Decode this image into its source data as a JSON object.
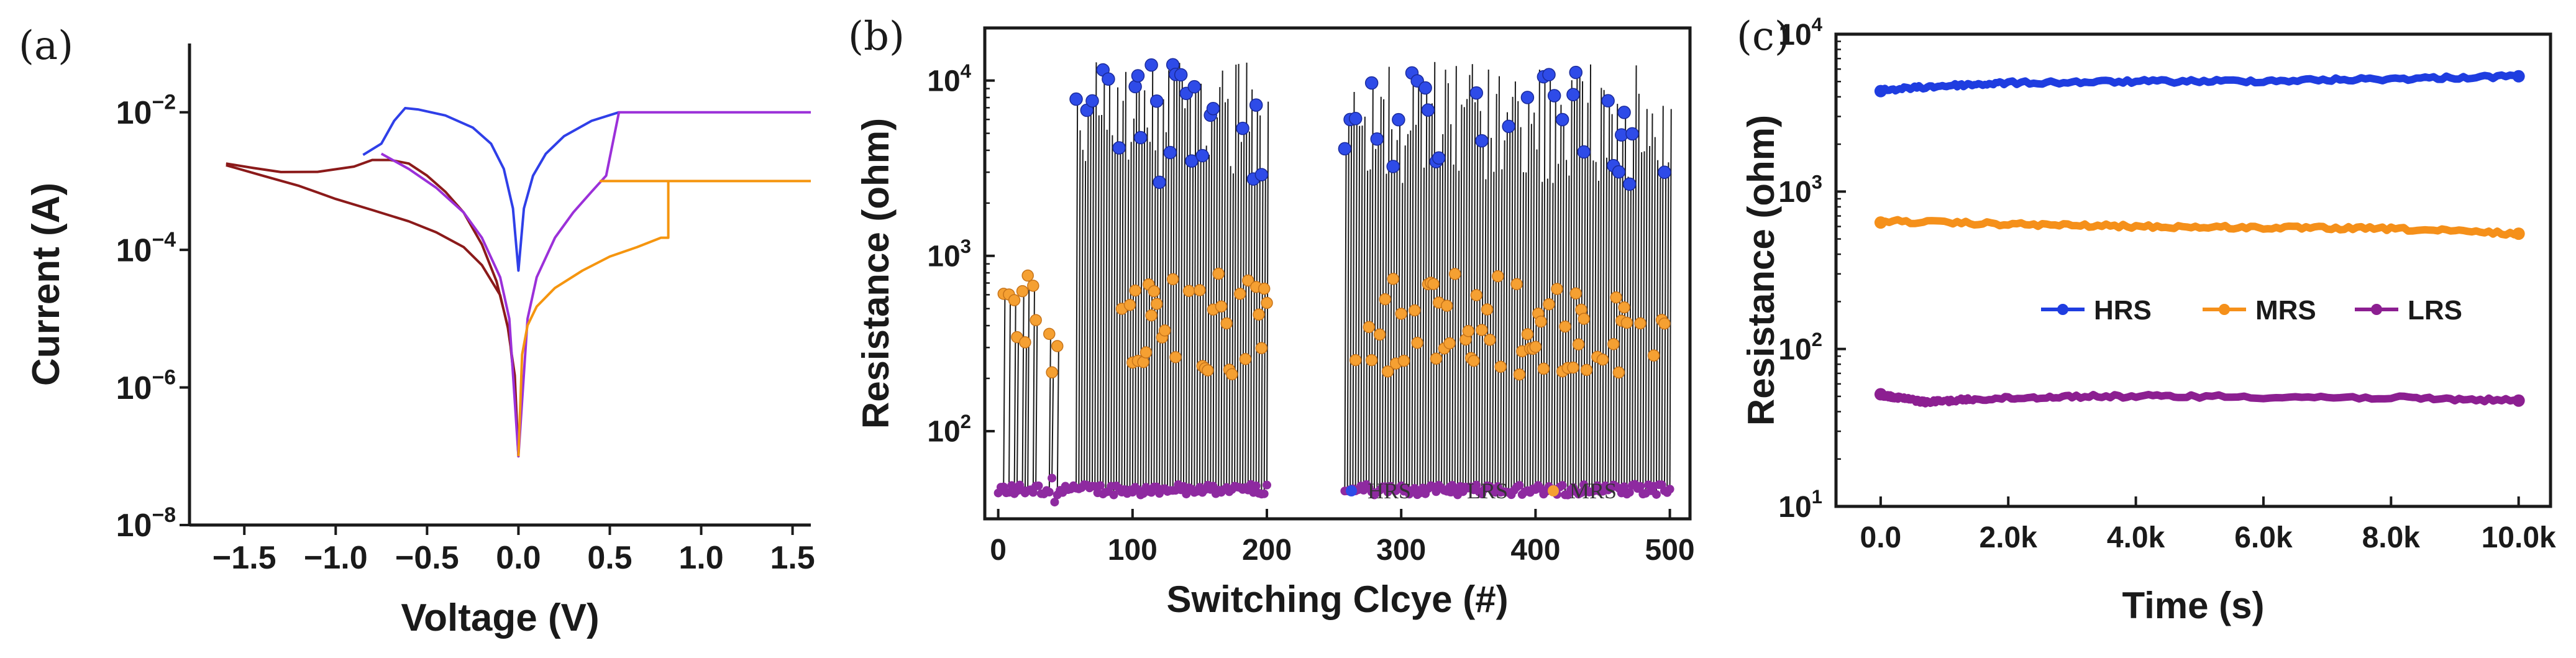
{
  "chart_data": [
    {
      "panel": "(a)",
      "type": "line",
      "xlabel": "Voltage (V)",
      "ylabel": "Current (A)",
      "xlim": [
        -1.8,
        1.6
      ],
      "ylim_log10": [
        -8,
        -1
      ],
      "y_scale": "log",
      "x_ticks": [
        "-1.5",
        "-1.0",
        "-0.5",
        "0.0",
        "0.5",
        "1.0",
        "1.5"
      ],
      "x_tick_values": [
        -1.5,
        -1.0,
        -0.5,
        0.0,
        0.5,
        1.0,
        1.5
      ],
      "y_tick_exponents": [
        -8,
        -6,
        -4,
        -2
      ],
      "y_tick_base": "10",
      "series": [
        {
          "name": "dark-red sweep",
          "color": "#8b1a1a",
          "x": [
            -1.6,
            -1.45,
            -1.3,
            -1.1,
            -0.9,
            -0.8,
            -0.7,
            -0.6,
            -0.5,
            -0.4,
            -0.3,
            -0.2,
            -0.12,
            -0.06,
            -0.02,
            0.0,
            -0.02,
            -0.05,
            -0.1,
            -0.2,
            -0.3,
            -0.45,
            -0.6,
            -0.8,
            -1.0,
            -1.2,
            -1.4,
            -1.6
          ],
          "y": [
            0.0018,
            0.0016,
            0.0013,
            0.0014,
            0.0018,
            0.0021,
            0.0021,
            0.0018,
            0.0012,
            0.0007,
            0.00035,
            0.00012,
            3.5e-05,
            8e-06,
            1.5e-06,
            1e-07,
            1e-06,
            6e-06,
            2.2e-05,
            6e-05,
            0.00011,
            0.00018,
            0.00026,
            0.00038,
            0.00055,
            0.00085,
            0.0012,
            0.0017
          ]
        },
        {
          "name": "blue sweep",
          "color": "#2f3fe8",
          "x": [
            -0.85,
            -0.75,
            -0.68,
            -0.62,
            -0.55,
            -0.4,
            -0.25,
            -0.15,
            -0.08,
            -0.03,
            0.0,
            0.03,
            0.08,
            0.15,
            0.25,
            0.4,
            0.55
          ],
          "y": [
            0.0024,
            0.0035,
            0.0075,
            0.0115,
            0.011,
            0.009,
            0.006,
            0.0035,
            0.0015,
            0.0004,
            5e-05,
            0.0004,
            0.0012,
            0.0025,
            0.0045,
            0.0075,
            0.01
          ]
        },
        {
          "name": "purple sweep",
          "color": "#9b30d9",
          "x": [
            -0.75,
            -0.6,
            -0.45,
            -0.3,
            -0.2,
            -0.1,
            -0.05,
            0.0,
            0.05,
            0.1,
            0.2,
            0.3,
            0.4,
            0.48,
            0.55,
            0.8,
            1.2,
            1.6
          ],
          "y": [
            0.0025,
            0.0015,
            0.0008,
            0.00035,
            0.00015,
            4e-05,
            1e-05,
            1e-07,
            1e-05,
            4e-05,
            0.00015,
            0.00035,
            0.0007,
            0.0012,
            0.01,
            0.01,
            0.01,
            0.01
          ]
        },
        {
          "name": "orange sweep",
          "color": "#f5950f",
          "x": [
            0.0,
            0.02,
            0.05,
            0.1,
            0.2,
            0.35,
            0.5,
            0.65,
            0.78,
            0.82,
            0.82,
            0.6,
            0.45,
            1.0,
            1.6
          ],
          "y": [
            1e-07,
            3e-06,
            8e-06,
            1.5e-05,
            2.8e-05,
            5e-05,
            8e-05,
            0.00011,
            0.00015,
            0.00015,
            0.001,
            0.001,
            0.001,
            0.001,
            0.001
          ]
        }
      ]
    },
    {
      "panel": "(b)",
      "type": "scatter",
      "xlabel": "Switching Clcye (#)",
      "ylabel": "Resistance (ohm)",
      "xlim": [
        -10,
        515
      ],
      "ylim_log10": [
        1.5,
        4.3
      ],
      "y_scale": "log",
      "x_ticks": [
        "0",
        "100",
        "200",
        "300",
        "400",
        "500"
      ],
      "x_tick_values": [
        0,
        100,
        200,
        300,
        400,
        500
      ],
      "y_tick_exponents": [
        2,
        3,
        4
      ],
      "y_tick_base": "10",
      "legend": [
        "HRS",
        "LRS",
        "MRS"
      ],
      "legend_colors": {
        "HRS": "#2e4be8",
        "LRS": "#8e2aa0",
        "MRS": "#f5a032"
      },
      "series_ranges": [
        {
          "name": "HRS",
          "x_range": [
            57,
            500
          ],
          "gap": [
            200,
            258
          ],
          "typical": 5000,
          "low": 2500,
          "high": 16000
        },
        {
          "name": "MRS",
          "x_range": [
            0,
            500
          ],
          "gaps": [
            [
              45,
              90
            ],
            [
              200,
              258
            ]
          ],
          "typical": 350,
          "low": 150,
          "high": 800
        },
        {
          "name": "LRS",
          "x_range": [
            0,
            500
          ],
          "gap": [
            200,
            258
          ],
          "typical": 47,
          "low": 37,
          "high": 55
        }
      ],
      "line_color": "#1a1a1a"
    },
    {
      "panel": "(c)",
      "type": "line",
      "xlabel": "Time (s)",
      "ylabel": "Resistance (ohm)",
      "xlim": [
        -700,
        10500
      ],
      "ylim_log10": [
        1,
        4
      ],
      "y_scale": "log",
      "x_ticks": [
        "0.0",
        "2.0k",
        "4.0k",
        "6.0k",
        "8.0k",
        "10.0k"
      ],
      "x_tick_values": [
        0,
        2000,
        4000,
        6000,
        8000,
        10000
      ],
      "y_tick_exponents": [
        1,
        2,
        3,
        4
      ],
      "y_tick_base": "10",
      "legend": [
        "HRS",
        "MRS",
        "LRS"
      ],
      "series": [
        {
          "name": "HRS",
          "color": "#1f3de0",
          "x": [
            0,
            1000,
            2000,
            4000,
            6000,
            8000,
            10000
          ],
          "y": [
            4400,
            4700,
            4900,
            5000,
            5050,
            5200,
            5400
          ]
        },
        {
          "name": "MRS",
          "color": "#f5901a",
          "x": [
            0,
            2000,
            4000,
            6000,
            8000,
            10000
          ],
          "y": [
            650,
            620,
            600,
            590,
            580,
            540
          ]
        },
        {
          "name": "LRS",
          "color": "#8c1f91",
          "x": [
            0,
            300,
            700,
            1500,
            3000,
            5000,
            8000,
            10000
          ],
          "y": [
            51,
            49,
            46,
            48,
            50,
            50,
            49,
            47
          ]
        }
      ]
    }
  ]
}
